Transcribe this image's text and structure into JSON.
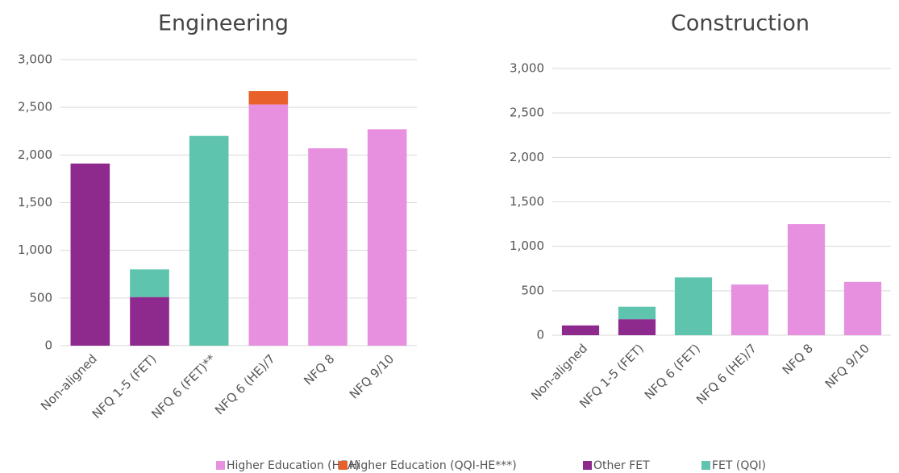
{
  "chart_data": [
    {
      "type": "bar",
      "stacked": true,
      "title": "Engineering",
      "categories": [
        "Non-aligned",
        "NFQ 1-5 (FET)",
        "NFQ 6 (FET)**",
        "NFQ 6 (HE)/7",
        "NFQ 8",
        "NFQ 9/10"
      ],
      "series": [
        {
          "color": "#8e2a8e",
          "values": [
            1910,
            510,
            null,
            null,
            null,
            null
          ]
        },
        {
          "color": "#5ec4ad",
          "values": [
            null,
            290,
            2200,
            null,
            null,
            null
          ]
        },
        {
          "name": "Higher Education (HEA)",
          "color": "#e890e0",
          "values": [
            null,
            null,
            null,
            2530,
            2070,
            2270
          ]
        },
        {
          "name": "Higher Education (QQI-HE***)",
          "color": "#e8602a",
          "values": [
            null,
            null,
            null,
            140,
            null,
            null
          ]
        }
      ],
      "ylim": [
        0,
        3000
      ],
      "yticks": [
        0,
        500,
        {
          "value": 1000,
          "label": "1,000"
        },
        {
          "value": 1500,
          "label": "1,500"
        },
        {
          "value": 2000,
          "label": "2,000"
        },
        {
          "value": 2500,
          "label": "2,500"
        },
        {
          "value": 3000,
          "label": "3,000"
        }
      ],
      "grid": true
    },
    {
      "type": "bar",
      "stacked": true,
      "title": "Construction",
      "categories": [
        "Non-aligned",
        "NFQ 1-5 (FET)",
        "NFQ 6 (FET)",
        "NFQ 6 (HE)/7",
        "NFQ 8",
        "NFQ 9/10"
      ],
      "series": [
        {
          "name": "Other FET",
          "color": "#8e2a8e",
          "values": [
            110,
            180,
            null,
            null,
            null,
            null
          ]
        },
        {
          "name": "FET (QQI)",
          "color": "#5ec4ad",
          "values": [
            null,
            140,
            650,
            null,
            null,
            null
          ]
        },
        {
          "color": "#e890e0",
          "values": [
            null,
            null,
            null,
            570,
            1250,
            600
          ]
        }
      ],
      "ylim": [
        0,
        3000
      ],
      "yticks": [
        0,
        500,
        {
          "value": 1000,
          "label": "1,000"
        },
        {
          "value": 1500,
          "label": "1,500"
        },
        {
          "value": 2000,
          "label": "2,000"
        },
        {
          "value": 2500,
          "label": "2,500"
        },
        {
          "value": 3000,
          "label": "3,000"
        }
      ],
      "grid": true
    }
  ]
}
